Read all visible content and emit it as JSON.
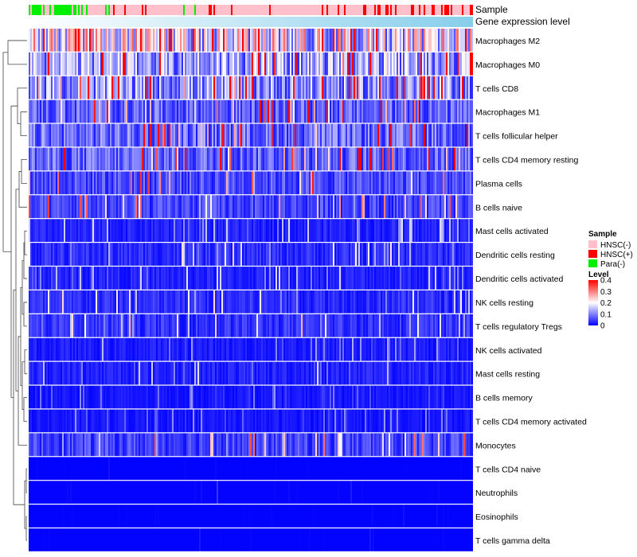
{
  "chart_data": {
    "type": "heatmap",
    "title": "",
    "column_annotations": [
      {
        "name": "Sample",
        "legend_title": "Sample",
        "levels": [
          "HNSC(-)",
          "HNSC(+)",
          "Para(-)"
        ],
        "colors": [
          "#ffc0cb",
          "#ff0000",
          "#00ee00"
        ]
      },
      {
        "name": "Gene expression level",
        "gradient": [
          "#ffffff",
          "#87ceeb"
        ]
      }
    ],
    "rows": [
      {
        "label": "Macrophages M2",
        "mean": 0.22
      },
      {
        "label": "Macrophages M0",
        "mean": 0.15
      },
      {
        "label": "T cells CD8",
        "mean": 0.13
      },
      {
        "label": "Macrophages M1",
        "mean": 0.085
      },
      {
        "label": "T cells follicular helper",
        "mean": 0.095
      },
      {
        "label": "T cells CD4 memory resting",
        "mean": 0.09
      },
      {
        "label": "Plasma cells",
        "mean": 0.07
      },
      {
        "label": "B cells naive",
        "mean": 0.06
      },
      {
        "label": "Mast cells activated",
        "mean": 0.03
      },
      {
        "label": "Dendritic cells resting",
        "mean": 0.04
      },
      {
        "label": "Dendritic cells activated",
        "mean": 0.03
      },
      {
        "label": "NK cells resting",
        "mean": 0.04
      },
      {
        "label": "T cells regulatory  Tregs",
        "mean": 0.045
      },
      {
        "label": "NK cells activated",
        "mean": 0.025
      },
      {
        "label": "Mast cells resting",
        "mean": 0.03
      },
      {
        "label": "B cells memory",
        "mean": 0.02
      },
      {
        "label": "T cells CD4 memory activated",
        "mean": 0.02
      },
      {
        "label": "Monocytes",
        "mean": 0.06
      },
      {
        "label": "T cells CD4 naive",
        "mean": 0.005
      },
      {
        "label": "Neutrophils",
        "mean": 0.008
      },
      {
        "label": "Eosinophils",
        "mean": 0.004
      },
      {
        "label": "T cells gamma delta",
        "mean": 0.004
      }
    ],
    "color_scale": {
      "legend_title": "Level",
      "min": 0,
      "max": 0.4,
      "ticks": [
        "0.4",
        "0.3",
        "0.2",
        "0.1",
        "0"
      ],
      "tick_values": [
        0.4,
        0.3,
        0.2,
        0.1,
        0
      ],
      "colors": [
        "#0000ff",
        "#ffffff",
        "#ff0000"
      ]
    },
    "dendrogram": "rows"
  }
}
